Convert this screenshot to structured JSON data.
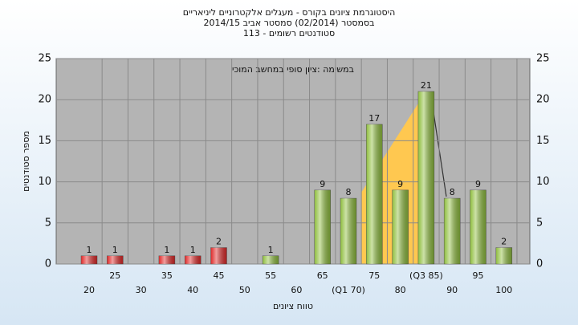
{
  "chart_data": {
    "type": "bar",
    "title": "היסטוגרמת ציונים בקורס - מעגלים אלקטרוניים ליניאריים",
    "subtitle": "בסמסטר  (02/2014)  סמסטר אביב 2014/15",
    "subtitle2": "סטודנטים רשומים - 113",
    "annotation": "במשימה :ציון סופי במחשב המוכי",
    "xlabel": "טווח ציונים",
    "ylabel": "מספר סטודנטים",
    "categories": [
      "20",
      "25",
      "30",
      "35",
      "40",
      "45",
      "50",
      "55",
      "60",
      "65",
      "(Q1 70)",
      "75",
      "80",
      "(Q3 85)",
      "90",
      "95",
      "100"
    ],
    "values": [
      1,
      1,
      0,
      1,
      1,
      2,
      0,
      1,
      0,
      9,
      8,
      17,
      9,
      21,
      8,
      9,
      2
    ],
    "colors": [
      "#e02828",
      "#e02828",
      "#e02828",
      "#e02828",
      "#e02828",
      "#e02828",
      "#e02828",
      "#8fbe3e",
      "#8fbe3e",
      "#8fbe3e",
      "#8fbe3e",
      "#8fbe3e",
      "#8fbe3e",
      "#8fbe3e",
      "#8fbe3e",
      "#8fbe3e",
      "#8fbe3e"
    ],
    "ylim": [
      0,
      25
    ],
    "yticks": [
      0,
      5,
      10,
      15,
      20,
      25
    ],
    "y2lim": [
      0,
      25
    ],
    "y2ticks": [
      0,
      5,
      10,
      15,
      20,
      25
    ],
    "grid": true
  }
}
